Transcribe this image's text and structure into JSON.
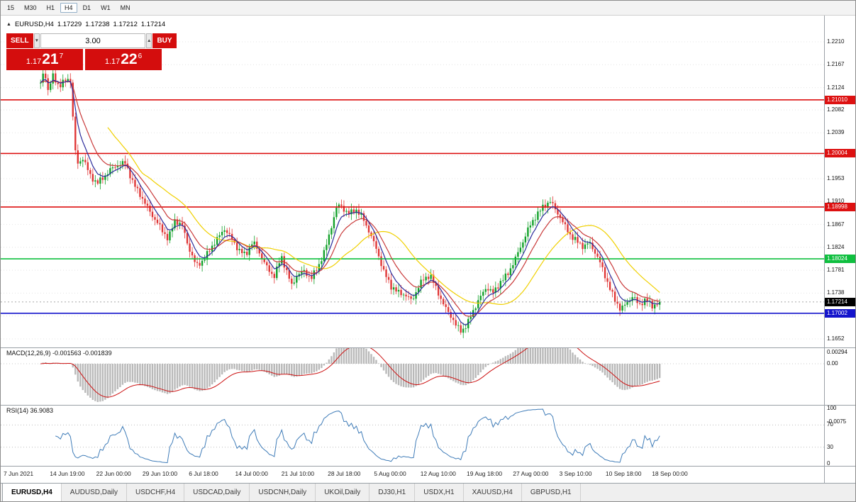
{
  "toolbar": {
    "timeframes": [
      {
        "label": "15",
        "active": false
      },
      {
        "label": "M30",
        "active": false
      },
      {
        "label": "H1",
        "active": false
      },
      {
        "label": "H4",
        "active": true
      },
      {
        "label": "D1",
        "active": false
      },
      {
        "label": "W1",
        "active": false
      },
      {
        "label": "MN",
        "active": false
      }
    ]
  },
  "chart_header": {
    "collapse_icon": "▲",
    "symbol": "EURUSD,H4",
    "open": "1.17229",
    "high": "1.17238",
    "low": "1.17212",
    "close": "1.17214"
  },
  "trade_panel": {
    "sell_label": "SELL",
    "buy_label": "BUY",
    "volume": "3.00",
    "down_arrow": "▼",
    "up_arrow": "▲",
    "sell_price": {
      "prefix": "1.17",
      "big": "21",
      "sup": "7"
    },
    "buy_price": {
      "prefix": "1.17",
      "big": "22",
      "sup": "6"
    }
  },
  "indicators": {
    "macd_label": "MACD(12,26,9) -0.001563 -0.001839",
    "rsi_label": "RSI(14) 36.9083"
  },
  "axis": {
    "price_ticks": [
      1.221,
      1.2167,
      1.2124,
      1.2082,
      1.2039,
      1.1996,
      1.1953,
      1.191,
      1.1867,
      1.1824,
      1.1781,
      1.1738,
      1.1695,
      1.1652
    ],
    "macd_ticks": [
      {
        "v": 0.00294,
        "label": "0.00294"
      },
      {
        "v": 0,
        "label": "0.00"
      },
      {
        "v": -0.0075,
        "label": "-0.0075"
      }
    ],
    "rsi_ticks": [
      {
        "v": 100,
        "label": "100"
      },
      {
        "v": 70,
        "label": "70"
      },
      {
        "v": 30,
        "label": "30"
      },
      {
        "v": 0,
        "label": "0"
      }
    ],
    "current_price": {
      "label": "1.17214",
      "value": 1.17214,
      "bg": "#000000"
    },
    "line_badges": [
      {
        "label": "1.21010",
        "value": 1.2101,
        "bg": "#dd1111"
      },
      {
        "label": "1.20004",
        "value": 1.20004,
        "bg": "#dd1111"
      },
      {
        "label": "1.18998",
        "value": 1.18998,
        "bg": "#dd1111"
      },
      {
        "label": "1.18024",
        "value": 1.18024,
        "bg": "#0fbf3f"
      },
      {
        "label": "1.17002",
        "value": 1.17002,
        "bg": "#1414cc"
      }
    ]
  },
  "time_axis": {
    "labels": [
      "7 Jun 2021",
      "14 Jun 19:00",
      "22 Jun 00:00",
      "29 Jun 10:00",
      "6 Jul 18:00",
      "14 Jul 00:00",
      "21 Jul 10:00",
      "28 Jul 18:00",
      "5 Aug 00:00",
      "12 Aug 10:00",
      "19 Aug 18:00",
      "27 Aug 00:00",
      "3 Sep 10:00",
      "10 Sep 18:00",
      "18 Sep 00:00"
    ]
  },
  "tabs": [
    {
      "label": "EURUSD,H4",
      "active": true
    },
    {
      "label": "AUDUSD,Daily",
      "active": false
    },
    {
      "label": "USDCHF,H4",
      "active": false
    },
    {
      "label": "USDCAD,Daily",
      "active": false
    },
    {
      "label": "USDCNH,Daily",
      "active": false
    },
    {
      "label": "UKOil,Daily",
      "active": false
    },
    {
      "label": "DJ30,H1",
      "active": false
    },
    {
      "label": "USDX,H1",
      "active": false
    },
    {
      "label": "XAUUSD,H4",
      "active": false
    },
    {
      "label": "GBPUSD,H1",
      "active": false
    }
  ],
  "colors": {
    "panel_red": "#d40d0d"
  },
  "chart_data": {
    "type": "candlestick",
    "symbol": "EURUSD",
    "timeframe": "H4",
    "x_range": [
      "7 Jun 2021",
      "18 Sep 2021"
    ],
    "y_axis": {
      "min": 1.1652,
      "max": 1.221
    },
    "current_bid": 1.17214,
    "horizontal_lines": [
      {
        "price": 1.2101,
        "color": "#dd1111",
        "type": "resistance"
      },
      {
        "price": 1.20004,
        "color": "#dd1111",
        "type": "resistance"
      },
      {
        "price": 1.18998,
        "color": "#dd1111",
        "type": "resistance"
      },
      {
        "price": 1.18024,
        "color": "#0fbf3f",
        "type": "support"
      },
      {
        "price": 1.17002,
        "color": "#1414cc",
        "type": "support"
      }
    ],
    "candle_count": 250,
    "noise_amp": 0.0007,
    "wick_amp": 0.0011,
    "price_path_anchors": [
      [
        0.0,
        1.2132
      ],
      [
        0.006,
        1.216
      ],
      [
        0.012,
        1.2118
      ],
      [
        0.02,
        1.2145
      ],
      [
        0.03,
        1.2125
      ],
      [
        0.04,
        1.2138
      ],
      [
        0.048,
        1.2142
      ],
      [
        0.053,
        1.2055
      ],
      [
        0.058,
        1.1978
      ],
      [
        0.068,
        1.1992
      ],
      [
        0.08,
        1.1958
      ],
      [
        0.091,
        1.1944
      ],
      [
        0.103,
        1.1958
      ],
      [
        0.114,
        1.1972
      ],
      [
        0.126,
        1.1978
      ],
      [
        0.137,
        1.1982
      ],
      [
        0.149,
        1.1946
      ],
      [
        0.16,
        1.1926
      ],
      [
        0.171,
        1.1902
      ],
      [
        0.183,
        1.1878
      ],
      [
        0.194,
        1.186
      ],
      [
        0.206,
        1.184
      ],
      [
        0.217,
        1.1876
      ],
      [
        0.229,
        1.1864
      ],
      [
        0.24,
        1.182
      ],
      [
        0.251,
        1.179
      ],
      [
        0.263,
        1.18
      ],
      [
        0.274,
        1.1822
      ],
      [
        0.286,
        1.184
      ],
      [
        0.297,
        1.1858
      ],
      [
        0.309,
        1.184
      ],
      [
        0.32,
        1.182
      ],
      [
        0.331,
        1.181
      ],
      [
        0.343,
        1.1834
      ],
      [
        0.354,
        1.1812
      ],
      [
        0.366,
        1.1786
      ],
      [
        0.377,
        1.177
      ],
      [
        0.389,
        1.1806
      ],
      [
        0.4,
        1.177
      ],
      [
        0.406,
        1.175
      ],
      [
        0.414,
        1.1772
      ],
      [
        0.426,
        1.178
      ],
      [
        0.437,
        1.1766
      ],
      [
        0.449,
        1.1788
      ],
      [
        0.46,
        1.182
      ],
      [
        0.469,
        1.186
      ],
      [
        0.477,
        1.1896
      ],
      [
        0.483,
        1.1906
      ],
      [
        0.497,
        1.1886
      ],
      [
        0.509,
        1.1894
      ],
      [
        0.52,
        1.188
      ],
      [
        0.531,
        1.1854
      ],
      [
        0.543,
        1.182
      ],
      [
        0.554,
        1.1778
      ],
      [
        0.566,
        1.175
      ],
      [
        0.577,
        1.174
      ],
      [
        0.589,
        1.1736
      ],
      [
        0.6,
        1.1724
      ],
      [
        0.609,
        1.1746
      ],
      [
        0.617,
        1.1762
      ],
      [
        0.629,
        1.1772
      ],
      [
        0.64,
        1.1746
      ],
      [
        0.651,
        1.1716
      ],
      [
        0.663,
        1.1694
      ],
      [
        0.671,
        1.1676
      ],
      [
        0.68,
        1.1666
      ],
      [
        0.689,
        1.168
      ],
      [
        0.697,
        1.1702
      ],
      [
        0.709,
        1.1728
      ],
      [
        0.72,
        1.1748
      ],
      [
        0.731,
        1.1738
      ],
      [
        0.743,
        1.176
      ],
      [
        0.754,
        1.1774
      ],
      [
        0.766,
        1.18
      ],
      [
        0.777,
        1.1828
      ],
      [
        0.789,
        1.1862
      ],
      [
        0.8,
        1.1884
      ],
      [
        0.811,
        1.19
      ],
      [
        0.823,
        1.191
      ],
      [
        0.834,
        1.189
      ],
      [
        0.846,
        1.1866
      ],
      [
        0.857,
        1.1846
      ],
      [
        0.866,
        1.1836
      ],
      [
        0.877,
        1.1824
      ],
      [
        0.886,
        1.1832
      ],
      [
        0.897,
        1.1812
      ],
      [
        0.906,
        1.179
      ],
      [
        0.914,
        1.1764
      ],
      [
        0.926,
        1.1728
      ],
      [
        0.937,
        1.1706
      ],
      [
        0.949,
        1.1722
      ],
      [
        0.957,
        1.1734
      ],
      [
        0.966,
        1.1716
      ],
      [
        0.977,
        1.1726
      ],
      [
        0.989,
        1.1712
      ],
      [
        1.0,
        1.17214
      ]
    ],
    "candle_colors": {
      "bull": "#12a12a",
      "bear": "#e03636"
    },
    "overlays": [
      {
        "name": "ma-slow",
        "method": "sma",
        "period": 28,
        "color": "#f0d000"
      },
      {
        "name": "ma-mid",
        "method": "ema",
        "period": 13,
        "color": "#c93a3a"
      },
      {
        "name": "ma-fast",
        "method": "ema",
        "period": 6,
        "color": "#2b2b9b"
      }
    ],
    "macd": {
      "fast": 12,
      "slow": 26,
      "signal": 9,
      "value": -0.001563,
      "signal_value": -0.001839,
      "hist_color": "#b9b9b9",
      "line_color": "#cc1111",
      "min_display": -0.0075
    },
    "rsi": {
      "display_period": 14,
      "render_period": 6,
      "value": 36.9083,
      "color": "#3f7cb8",
      "levels": [
        70,
        30
      ]
    }
  }
}
